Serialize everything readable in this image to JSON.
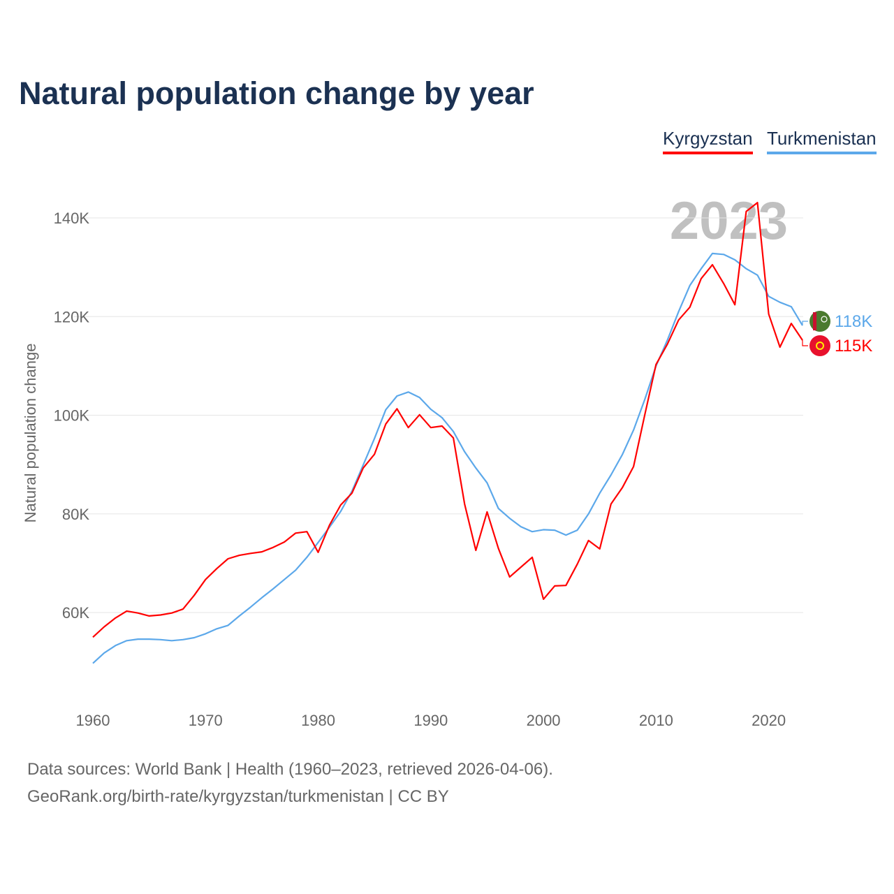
{
  "title": "Natural population change by year",
  "year_watermark": "2023",
  "footer": {
    "line1": "Data sources: World Bank | Health (1960–2023, retrieved 2026-04-06).",
    "line2": "GeoRank.org/birth-rate/kyrgyzstan/turkmenistan | CC BY"
  },
  "chart_data": {
    "type": "line",
    "title": "Natural population change by year",
    "xlabel": "",
    "ylabel": "Natural population change",
    "xlim": [
      1960,
      2023
    ],
    "ylim": [
      45000,
      150000
    ],
    "grid": true,
    "legend_placement": "top-right",
    "x_ticks": [
      1960,
      1970,
      1980,
      1990,
      2000,
      2010,
      2020
    ],
    "y_ticks": [
      60000,
      80000,
      100000,
      120000,
      140000
    ],
    "y_tick_labels": [
      "60K",
      "80K",
      "100K",
      "120K",
      "140K"
    ],
    "x_tick_labels": [
      "1960",
      "1970",
      "1980",
      "1990",
      "2000",
      "2010",
      "2020"
    ],
    "x": [
      1960,
      1961,
      1962,
      1963,
      1964,
      1965,
      1966,
      1967,
      1968,
      1969,
      1970,
      1971,
      1972,
      1973,
      1974,
      1975,
      1976,
      1977,
      1978,
      1979,
      1980,
      1981,
      1982,
      1983,
      1984,
      1985,
      1986,
      1987,
      1988,
      1989,
      1990,
      1991,
      1992,
      1993,
      1994,
      1995,
      1996,
      1997,
      1998,
      1999,
      2000,
      2001,
      2002,
      2003,
      2004,
      2005,
      2006,
      2007,
      2008,
      2009,
      2010,
      2011,
      2012,
      2013,
      2014,
      2015,
      2016,
      2017,
      2018,
      2019,
      2020,
      2021,
      2022,
      2023
    ],
    "series": [
      {
        "name": "Kyrgyzstan",
        "color": "#ff0000",
        "end_label": "115K",
        "flag": "kyrgyzstan-flag",
        "values": [
          55000,
          57100,
          58900,
          60300,
          59900,
          59300,
          59500,
          59900,
          60700,
          63500,
          66700,
          68900,
          70900,
          71600,
          72000,
          72300,
          73200,
          74300,
          76100,
          76400,
          72200,
          77700,
          81800,
          84200,
          89300,
          92100,
          98200,
          101300,
          97500,
          100100,
          97500,
          97800,
          95400,
          82000,
          72600,
          80400,
          73000,
          67200,
          69200,
          71200,
          62700,
          65400,
          65500,
          69800,
          74600,
          72900,
          82000,
          85300,
          89600,
          100100,
          110300,
          114400,
          119300,
          121900,
          127700,
          130500,
          126700,
          122400,
          141300,
          143100,
          120500,
          113800,
          118600,
          115200
        ]
      },
      {
        "name": "Turkmenistan",
        "color": "#5ca8ea",
        "end_label": "118K",
        "flag": "turkmenistan-flag",
        "values": [
          49700,
          51800,
          53300,
          54300,
          54600,
          54600,
          54500,
          54300,
          54500,
          54900,
          55700,
          56700,
          57400,
          59300,
          61100,
          63000,
          64800,
          66700,
          68600,
          71200,
          74200,
          77300,
          80500,
          84600,
          89900,
          95300,
          101100,
          103900,
          104700,
          103600,
          101200,
          99500,
          96700,
          92600,
          89300,
          86300,
          81100,
          79100,
          77400,
          76400,
          76800,
          76700,
          75700,
          76700,
          80000,
          84200,
          87900,
          92000,
          97000,
          103200,
          110000,
          115200,
          121000,
          126300,
          129700,
          132800,
          132600,
          131500,
          129700,
          128400,
          124100,
          122900,
          122000,
          118200
        ]
      }
    ]
  }
}
